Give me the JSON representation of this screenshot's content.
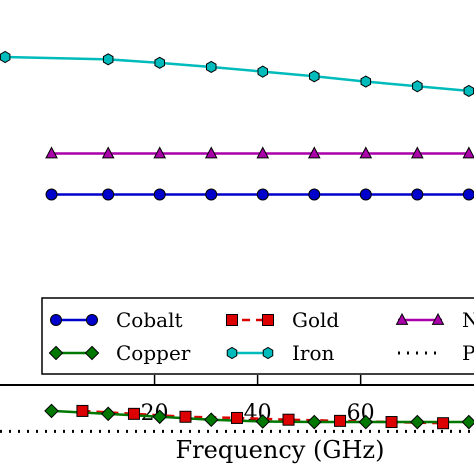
{
  "chart_data": {
    "type": "line",
    "xlabel": "Frequency (GHz)",
    "xlim": [
      -10,
      82
    ],
    "xticks": [
      20,
      40,
      60
    ],
    "ylim": [
      0,
      1
    ],
    "grid": false,
    "legend_position": "bottom",
    "series": [
      {
        "name": "Cobalt",
        "color": "#0000cc",
        "marker": "circle",
        "line_style": "solid",
        "x": [
          0,
          11,
          21,
          31,
          41,
          51,
          61,
          71,
          81
        ],
        "y": [
          0.765,
          0.765,
          0.765,
          0.765,
          0.765,
          0.765,
          0.765,
          0.765,
          0.765
        ]
      },
      {
        "name": "Gold",
        "color": "#dd0000",
        "marker": "square",
        "line_style": "dashed",
        "x": [
          6,
          16,
          26,
          36,
          46,
          56,
          66,
          76
        ],
        "y": [
          0.395,
          0.39,
          0.385,
          0.383,
          0.38,
          0.378,
          0.376,
          0.374
        ]
      },
      {
        "name": "Nickel",
        "color": "#aa00aa",
        "marker": "triangle",
        "line_style": "solid",
        "x": [
          0,
          11,
          21,
          31,
          41,
          51,
          61,
          71,
          81
        ],
        "y": [
          0.835,
          0.835,
          0.835,
          0.835,
          0.835,
          0.835,
          0.835,
          0.835,
          0.835
        ]
      },
      {
        "name": "Copper",
        "color": "#007700",
        "marker": "diamond",
        "line_style": "solid",
        "x": [
          0,
          11,
          21,
          31,
          41,
          51,
          61,
          71,
          81
        ],
        "y": [
          0.395,
          0.39,
          0.385,
          0.38,
          0.377,
          0.376,
          0.376,
          0.376,
          0.376
        ]
      },
      {
        "name": "Iron",
        "color": "#00bbbb",
        "marker": "hexagon",
        "line_style": "solid",
        "x": [
          -9,
          11,
          21,
          31,
          41,
          51,
          61,
          71,
          81
        ],
        "y": [
          1.0,
          0.996,
          0.99,
          0.983,
          0.975,
          0.967,
          0.958,
          0.95,
          0.942
        ]
      },
      {
        "name": "Pl",
        "color": "#000000",
        "marker": "none",
        "line_style": "dotted",
        "x": [
          -10,
          82
        ],
        "y": [
          0.36,
          0.36
        ]
      }
    ],
    "legend": [
      {
        "label": "Cobalt",
        "series": 0
      },
      {
        "label": "Gold",
        "series": 1
      },
      {
        "label": "N",
        "series": 2
      },
      {
        "label": "Copper",
        "series": 3
      },
      {
        "label": "Iron",
        "series": 4
      },
      {
        "label": "Pl",
        "series": 5
      }
    ]
  }
}
